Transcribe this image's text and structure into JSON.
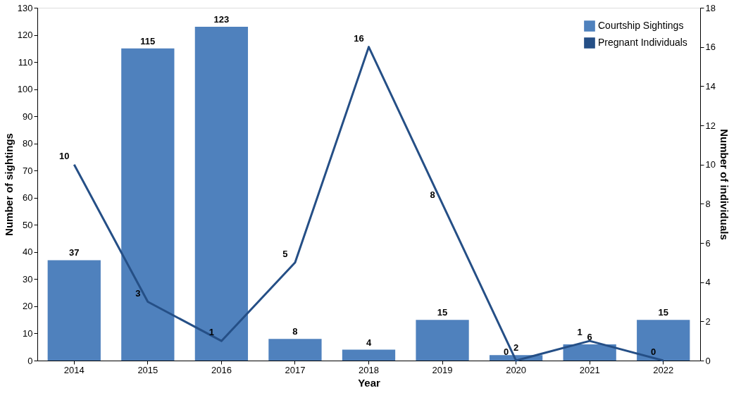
{
  "chart_data": {
    "type": "bar",
    "xlabel": "Year",
    "ylabel": "Number of sightings",
    "y2label": "Number of individuals",
    "categories": [
      "2014",
      "2015",
      "2016",
      "2017",
      "2018",
      "2019",
      "2020",
      "2021",
      "2022"
    ],
    "series": [
      {
        "name": "Courtship Sightings",
        "color": "#4f81bd",
        "values": [
          37,
          115,
          123,
          8,
          4,
          15,
          2,
          6,
          15
        ]
      },
      {
        "name": "Pregnant Individuals",
        "type": "line",
        "axis": "y2",
        "color": "#254f86",
        "values": [
          10,
          3,
          1,
          5,
          16,
          8,
          0,
          1,
          0
        ]
      }
    ],
    "ylim": [
      0,
      130
    ],
    "yticks": [
      0,
      10,
      20,
      30,
      40,
      50,
      60,
      70,
      80,
      90,
      100,
      110,
      120,
      130
    ],
    "y2lim": [
      0,
      18
    ],
    "y2ticks": [
      0,
      2,
      4,
      6,
      8,
      10,
      12,
      14,
      16,
      18
    ],
    "data_labels": true,
    "legend": "top right",
    "grid": false,
    "marker": "none",
    "line_style": "solid"
  }
}
